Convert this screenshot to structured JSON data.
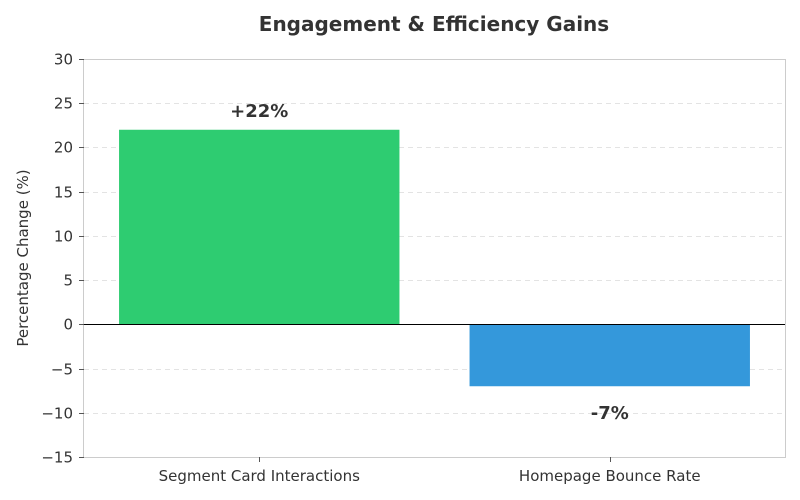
{
  "chart_data": {
    "type": "bar",
    "title": "Engagement & Efficiency Gains",
    "xlabel": "",
    "ylabel": "Percentage Change (%)",
    "categories": [
      "Segment Card Interactions",
      "Homepage Bounce Rate"
    ],
    "values": [
      22,
      -7
    ],
    "data_labels": [
      "+22%",
      "-7%"
    ],
    "colors": [
      "#2ecc71",
      "#3498db"
    ],
    "ylim": [
      -15,
      30
    ],
    "yticks": [
      -15,
      -10,
      -5,
      0,
      5,
      10,
      15,
      20,
      25,
      30
    ],
    "ytick_labels": [
      "−15",
      "−10",
      "−5",
      "0",
      "5",
      "10",
      "15",
      "20",
      "25",
      "30"
    ],
    "grid": true,
    "zero_line": true
  }
}
